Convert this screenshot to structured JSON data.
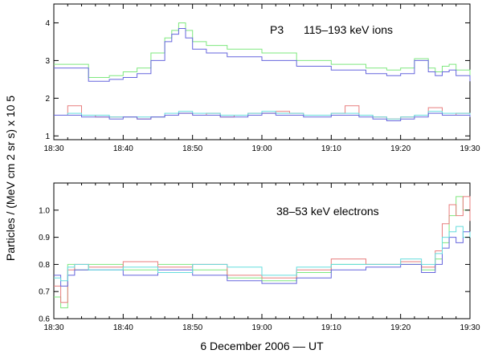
{
  "chart_data": [
    {
      "type": "line",
      "title": "",
      "panel_label": "P3",
      "panel_text": "115–193 keV ions",
      "xlabel": "",
      "ylabel": "",
      "ylim": [
        0.9,
        4.5
      ],
      "xlim_minutes": [
        0,
        60
      ],
      "x_tick_labels": [
        "18:30",
        "18:40",
        "18:50",
        "19:00",
        "19:10",
        "19:20",
        "19:30"
      ],
      "y_tick_labels": [
        "1",
        "2",
        "3",
        "4"
      ],
      "y_tick_values": [
        1,
        2,
        3,
        4
      ],
      "colors": {
        "green": "#7ee87e",
        "blue": "#6666dd",
        "red": "#e87e7e",
        "cyan": "#66dddd"
      },
      "series": [
        {
          "name": "ions green",
          "color_key": "green",
          "x": [
            0,
            5,
            8,
            10,
            12,
            14,
            16,
            17,
            18,
            19,
            20,
            22,
            25,
            30,
            35,
            40,
            45,
            48,
            50,
            52,
            54,
            55,
            56,
            57,
            58,
            60
          ],
          "values": [
            2.9,
            2.55,
            2.6,
            2.7,
            2.8,
            3.2,
            3.6,
            3.8,
            4.0,
            3.8,
            3.5,
            3.4,
            3.3,
            3.2,
            3.0,
            2.9,
            2.8,
            2.75,
            2.8,
            3.05,
            2.8,
            2.7,
            2.85,
            2.9,
            2.75,
            2.6
          ]
        },
        {
          "name": "ions blue",
          "color_key": "blue",
          "x": [
            0,
            5,
            8,
            10,
            12,
            14,
            16,
            17,
            18,
            19,
            20,
            22,
            25,
            30,
            35,
            40,
            45,
            48,
            50,
            52,
            54,
            55,
            56,
            57,
            58,
            60
          ],
          "values": [
            2.8,
            2.45,
            2.5,
            2.55,
            2.65,
            3.0,
            3.5,
            3.7,
            3.85,
            3.6,
            3.3,
            3.2,
            3.1,
            3.0,
            2.85,
            2.75,
            2.65,
            2.6,
            2.65,
            3.0,
            2.7,
            2.6,
            2.7,
            2.75,
            2.6,
            2.45
          ]
        },
        {
          "name": "ions red",
          "color_key": "red",
          "x": [
            0,
            2,
            4,
            6,
            8,
            10,
            12,
            14,
            16,
            18,
            20,
            22,
            24,
            26,
            28,
            30,
            32,
            34,
            36,
            38,
            40,
            42,
            44,
            46,
            48,
            50,
            52,
            54,
            56,
            58,
            60
          ],
          "values": [
            1.55,
            1.8,
            1.55,
            1.5,
            1.5,
            1.5,
            1.45,
            1.5,
            1.55,
            1.6,
            1.55,
            1.6,
            1.5,
            1.55,
            1.6,
            1.6,
            1.65,
            1.6,
            1.55,
            1.55,
            1.6,
            1.8,
            1.55,
            1.5,
            1.45,
            1.5,
            1.55,
            1.75,
            1.55,
            1.6,
            1.55
          ]
        },
        {
          "name": "ions cyan",
          "color_key": "cyan",
          "x": [
            0,
            2,
            4,
            6,
            8,
            10,
            12,
            14,
            16,
            18,
            20,
            22,
            24,
            26,
            28,
            30,
            32,
            34,
            36,
            38,
            40,
            42,
            44,
            46,
            48,
            50,
            52,
            54,
            56,
            58,
            60
          ],
          "values": [
            1.55,
            1.6,
            1.55,
            1.55,
            1.5,
            1.5,
            1.5,
            1.5,
            1.6,
            1.65,
            1.6,
            1.6,
            1.55,
            1.55,
            1.6,
            1.65,
            1.6,
            1.6,
            1.55,
            1.55,
            1.6,
            1.6,
            1.55,
            1.5,
            1.45,
            1.5,
            1.55,
            1.65,
            1.6,
            1.6,
            1.55
          ]
        },
        {
          "name": "ions blue low",
          "color_key": "blue",
          "x": [
            0,
            2,
            4,
            6,
            8,
            10,
            12,
            14,
            16,
            18,
            20,
            22,
            24,
            26,
            28,
            30,
            32,
            34,
            36,
            38,
            40,
            42,
            44,
            46,
            48,
            50,
            52,
            54,
            56,
            58,
            60
          ],
          "values": [
            1.55,
            1.55,
            1.5,
            1.5,
            1.45,
            1.5,
            1.45,
            1.5,
            1.55,
            1.6,
            1.55,
            1.55,
            1.5,
            1.5,
            1.55,
            1.6,
            1.55,
            1.55,
            1.5,
            1.5,
            1.55,
            1.55,
            1.5,
            1.45,
            1.4,
            1.45,
            1.5,
            1.6,
            1.55,
            1.55,
            1.5
          ]
        }
      ]
    },
    {
      "type": "line",
      "title": "",
      "panel_text": "38–53 keV electrons",
      "xlabel": "6 December 2006  ––  UT",
      "ylabel": "Particles / (MeV cm 2 sr s) x 10 5",
      "ylim": [
        0.6,
        1.1
      ],
      "xlim_minutes": [
        0,
        60
      ],
      "x_tick_labels": [
        "18:30",
        "18:40",
        "18:50",
        "19:00",
        "19:10",
        "19:20",
        "19:30"
      ],
      "y_tick_labels": [
        "0.6",
        "0.7",
        "0.8",
        "0.9",
        "1.0"
      ],
      "y_tick_values": [
        0.6,
        0.7,
        0.8,
        0.9,
        1.0
      ],
      "series": [
        {
          "name": "electrons green",
          "color_key": "green",
          "x": [
            0,
            1,
            2,
            3,
            5,
            10,
            15,
            20,
            25,
            30,
            35,
            40,
            45,
            50,
            53,
            55,
            56,
            57,
            58,
            59,
            60
          ],
          "values": [
            0.68,
            0.64,
            0.8,
            0.78,
            0.8,
            0.78,
            0.8,
            0.78,
            0.75,
            0.74,
            0.77,
            0.8,
            0.8,
            0.8,
            0.78,
            0.82,
            0.88,
            0.98,
            1.05,
            1.0,
            0.98
          ]
        },
        {
          "name": "electrons red",
          "color_key": "red",
          "x": [
            0,
            1,
            2,
            3,
            5,
            10,
            15,
            20,
            25,
            30,
            35,
            40,
            45,
            50,
            53,
            55,
            56,
            57,
            58,
            59,
            60
          ],
          "values": [
            0.72,
            0.66,
            0.78,
            0.8,
            0.79,
            0.81,
            0.79,
            0.8,
            0.76,
            0.75,
            0.78,
            0.82,
            0.8,
            0.81,
            0.79,
            0.85,
            0.95,
            1.02,
            0.98,
            1.05,
            0.96
          ]
        },
        {
          "name": "electrons blue",
          "color_key": "blue",
          "x": [
            0,
            1,
            2,
            3,
            5,
            10,
            15,
            20,
            25,
            30,
            35,
            40,
            45,
            50,
            53,
            55,
            56,
            57,
            58,
            59,
            60
          ],
          "values": [
            0.76,
            0.72,
            0.76,
            0.78,
            0.78,
            0.76,
            0.78,
            0.76,
            0.74,
            0.73,
            0.75,
            0.78,
            0.79,
            0.8,
            0.77,
            0.8,
            0.86,
            0.9,
            0.88,
            0.92,
            0.9
          ]
        },
        {
          "name": "electrons cyan",
          "color_key": "cyan",
          "x": [
            0,
            1,
            2,
            3,
            5,
            10,
            15,
            20,
            25,
            30,
            35,
            40,
            45,
            50,
            53,
            55,
            56,
            57,
            58,
            59,
            60
          ],
          "values": [
            0.75,
            0.74,
            0.79,
            0.8,
            0.78,
            0.79,
            0.77,
            0.8,
            0.79,
            0.76,
            0.79,
            0.8,
            0.8,
            0.82,
            0.8,
            0.84,
            0.9,
            0.92,
            0.94,
            0.9,
            0.92
          ]
        }
      ]
    }
  ]
}
